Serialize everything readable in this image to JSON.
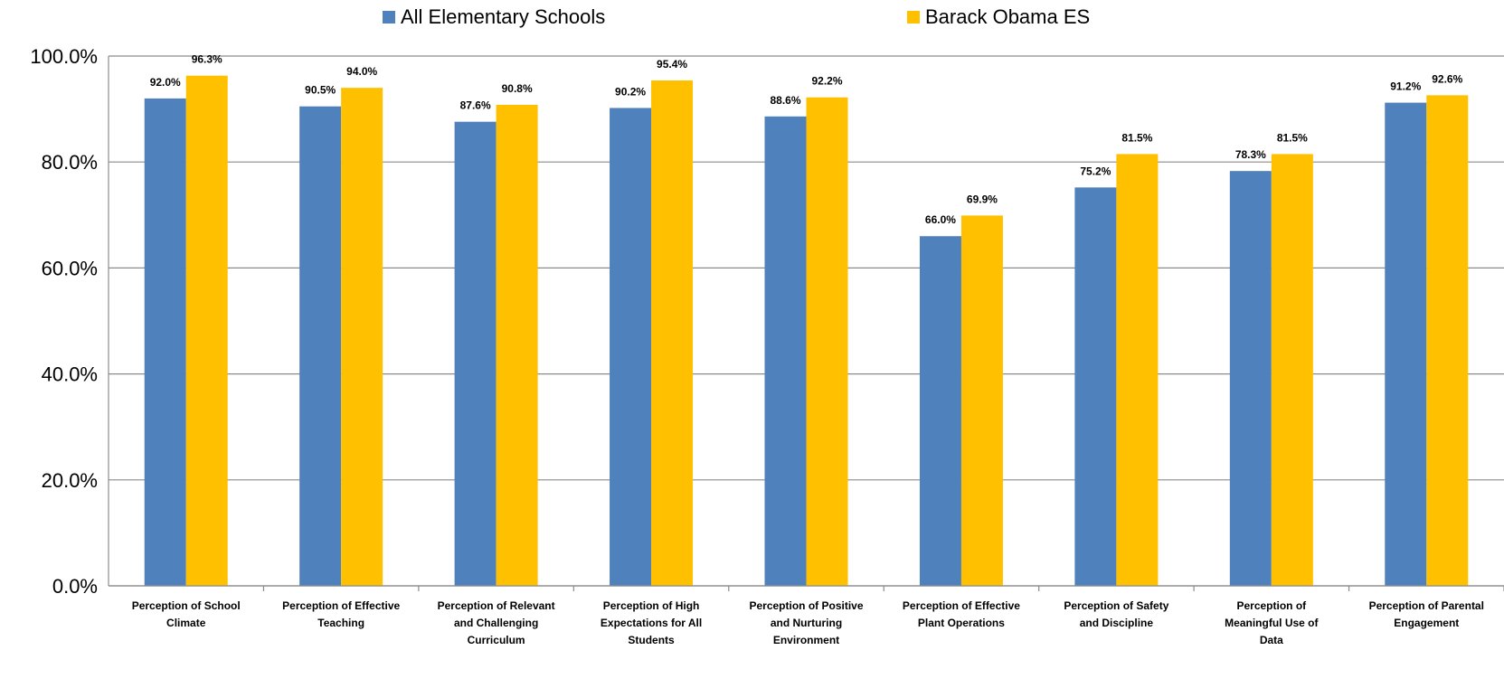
{
  "chart_data": {
    "type": "bar",
    "categories": [
      "Perception of School Climate",
      "Perception of Effective Teaching",
      "Perception of Relevant and Challenging Curriculum",
      "Perception of High Expectations for All Students",
      "Perception of Positive and Nurturing Environment",
      "Perception of Effective Plant Operations",
      "Perception of Safety and Discipline",
      "Perception of Meaningful Use of Data",
      "Perception of Parental Engagement"
    ],
    "category_label_lines": [
      [
        "Perception of School",
        "Climate"
      ],
      [
        "Perception of Effective",
        "Teaching"
      ],
      [
        "Perception of Relevant",
        "and Challenging",
        "Curriculum"
      ],
      [
        "Perception of High",
        "Expectations for All",
        "Students"
      ],
      [
        "Perception of Positive",
        "and Nurturing",
        "Environment"
      ],
      [
        "Perception of Effective",
        "Plant Operations"
      ],
      [
        "Perception of Safety",
        "and Discipline"
      ],
      [
        "Perception of",
        "Meaningful Use of",
        "Data"
      ],
      [
        "Perception of Parental",
        "Engagement"
      ]
    ],
    "series": [
      {
        "name": "All Elementary Schools",
        "color": "#4F81BD",
        "values": [
          92.0,
          90.5,
          87.6,
          90.2,
          88.6,
          66.0,
          75.2,
          78.3,
          91.2
        ],
        "labels": [
          "92.0%",
          "90.5%",
          "87.6%",
          "90.2%",
          "88.6%",
          "66.0%",
          "75.2%",
          "78.3%",
          "91.2%"
        ]
      },
      {
        "name": "Barack Obama ES",
        "color": "#FFC000",
        "values": [
          96.3,
          94.0,
          90.8,
          95.4,
          92.2,
          69.9,
          81.5,
          81.5,
          92.6
        ],
        "labels": [
          "96.3%",
          "94.0%",
          "90.8%",
          "95.4%",
          "92.2%",
          "69.9%",
          "81.5%",
          "81.5%",
          "92.6%"
        ]
      }
    ],
    "ylim": [
      0,
      100
    ],
    "yticks": [
      0,
      20,
      40,
      60,
      80,
      100
    ],
    "ytick_labels": [
      "0.0%",
      "20.0%",
      "40.0%",
      "60.0%",
      "80.0%",
      "100.0%"
    ],
    "grid": true,
    "legend_position": "top"
  }
}
